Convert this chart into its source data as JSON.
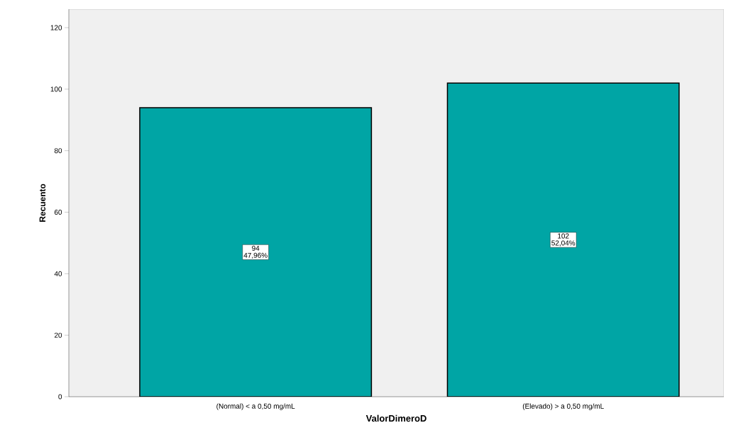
{
  "chart_data": {
    "type": "bar",
    "xlabel": "ValorDimeroD",
    "ylabel": "Recuento",
    "categories": [
      "(Normal) < a 0,50 mg/mL",
      "(Elevado) > a 0,50 mg/mL"
    ],
    "values": [
      94,
      102
    ],
    "color": "#00a5a5",
    "data_labels": true,
    "ylim": [
      0,
      126
    ],
    "yticks": [
      0,
      20,
      40,
      60,
      80,
      100,
      120
    ],
    "grid": false,
    "annotations": [
      "47,96%",
      "52,04%"
    ]
  }
}
